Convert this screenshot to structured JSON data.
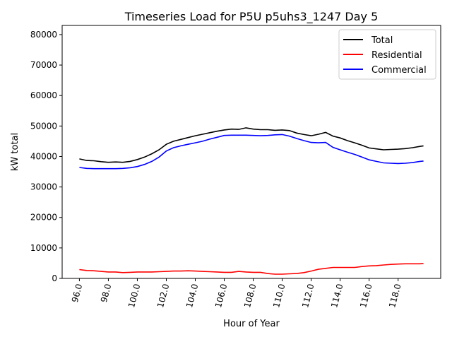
{
  "chart_data": {
    "type": "line",
    "title": "Timeseries Load for P5U p5uhs3_1247  Day 5",
    "xlabel": "Hour of Year",
    "ylabel": "kW total",
    "xlim": [
      94.81,
      120.94
    ],
    "ylim": [
      0,
      83000
    ],
    "xticks": [
      96,
      98,
      100,
      102,
      104,
      106,
      108,
      110,
      112,
      114,
      116,
      118
    ],
    "xtick_labels": [
      "96.0",
      "98.0",
      "100.0",
      "102.0",
      "104.0",
      "106.0",
      "108.0",
      "110.0",
      "112.0",
      "114.0",
      "116.0",
      "118.0"
    ],
    "yticks": [
      0,
      10000,
      20000,
      30000,
      40000,
      50000,
      60000,
      70000,
      80000
    ],
    "ytick_labels": [
      "0",
      "10000",
      "20000",
      "30000",
      "40000",
      "50000",
      "60000",
      "70000",
      "80000"
    ],
    "grid": false,
    "legend_position": "top-right",
    "x": [
      96,
      96.5,
      97,
      97.5,
      98,
      98.5,
      99,
      99.5,
      100,
      100.5,
      101,
      101.5,
      102,
      102.5,
      103,
      103.5,
      104,
      104.5,
      105,
      105.5,
      106,
      106.5,
      107,
      107.5,
      108,
      108.5,
      109,
      109.5,
      110,
      110.5,
      111,
      111.5,
      112,
      112.5,
      113,
      113.5,
      114,
      114.5,
      115,
      115.5,
      116,
      116.5,
      117,
      117.5,
      118,
      118.5,
      119,
      119.5,
      119.75
    ],
    "series": [
      {
        "name": "Total",
        "color": "#000000",
        "values": [
          39200,
          38700,
          38600,
          38300,
          38100,
          38200,
          38100,
          38400,
          39000,
          39800,
          40900,
          42200,
          44000,
          45000,
          45600,
          46200,
          46800,
          47300,
          47800,
          48300,
          48700,
          49000,
          48900,
          49400,
          49000,
          48800,
          48800,
          48600,
          48700,
          48500,
          47700,
          47200,
          46800,
          47300,
          47900,
          46700,
          46100,
          45200,
          44500,
          43700,
          42800,
          42500,
          42200,
          42300,
          42400,
          42600,
          42900,
          43300,
          43500
        ]
      },
      {
        "name": "Residential",
        "color": "#ff0000",
        "values": [
          2900,
          2600,
          2500,
          2300,
          2100,
          2100,
          1900,
          2000,
          2100,
          2100,
          2100,
          2200,
          2300,
          2400,
          2400,
          2500,
          2400,
          2300,
          2200,
          2100,
          2000,
          2000,
          2300,
          2100,
          2000,
          2000,
          1600,
          1400,
          1400,
          1500,
          1600,
          1900,
          2400,
          3000,
          3300,
          3600,
          3600,
          3600,
          3600,
          3900,
          4100,
          4200,
          4400,
          4600,
          4700,
          4800,
          4800,
          4800,
          4900
        ]
      },
      {
        "name": "Commercial",
        "color": "#0000ff",
        "values": [
          36400,
          36100,
          36000,
          36000,
          36000,
          36000,
          36100,
          36300,
          36700,
          37400,
          38400,
          39800,
          41800,
          42900,
          43500,
          44000,
          44500,
          45000,
          45700,
          46300,
          46900,
          47000,
          47000,
          47000,
          46900,
          46800,
          46900,
          47100,
          47200,
          46700,
          45900,
          45200,
          44600,
          44500,
          44600,
          43000,
          42200,
          41400,
          40700,
          39800,
          38900,
          38400,
          37900,
          37800,
          37700,
          37800,
          38000,
          38400,
          38500
        ]
      }
    ]
  }
}
